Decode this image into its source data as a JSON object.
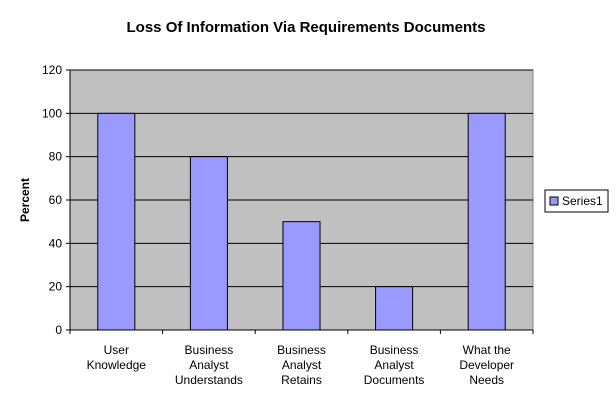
{
  "chart_data": {
    "type": "bar",
    "title": "Loss Of Information Via Requirements Documents",
    "y_label": "Percent",
    "categories": [
      "User Knowledge",
      "Business Analyst Understands",
      "Business Analyst Retains",
      "Business Analyst Documents",
      "What the Developer Needs"
    ],
    "series": [
      {
        "name": "Series1",
        "color": "#9999ff",
        "values": [
          100,
          80,
          50,
          20,
          100
        ]
      }
    ],
    "ylim": [
      0,
      120
    ],
    "yticks": [
      0,
      20,
      40,
      60,
      80,
      100,
      120
    ],
    "grid": true,
    "legend": "right"
  }
}
